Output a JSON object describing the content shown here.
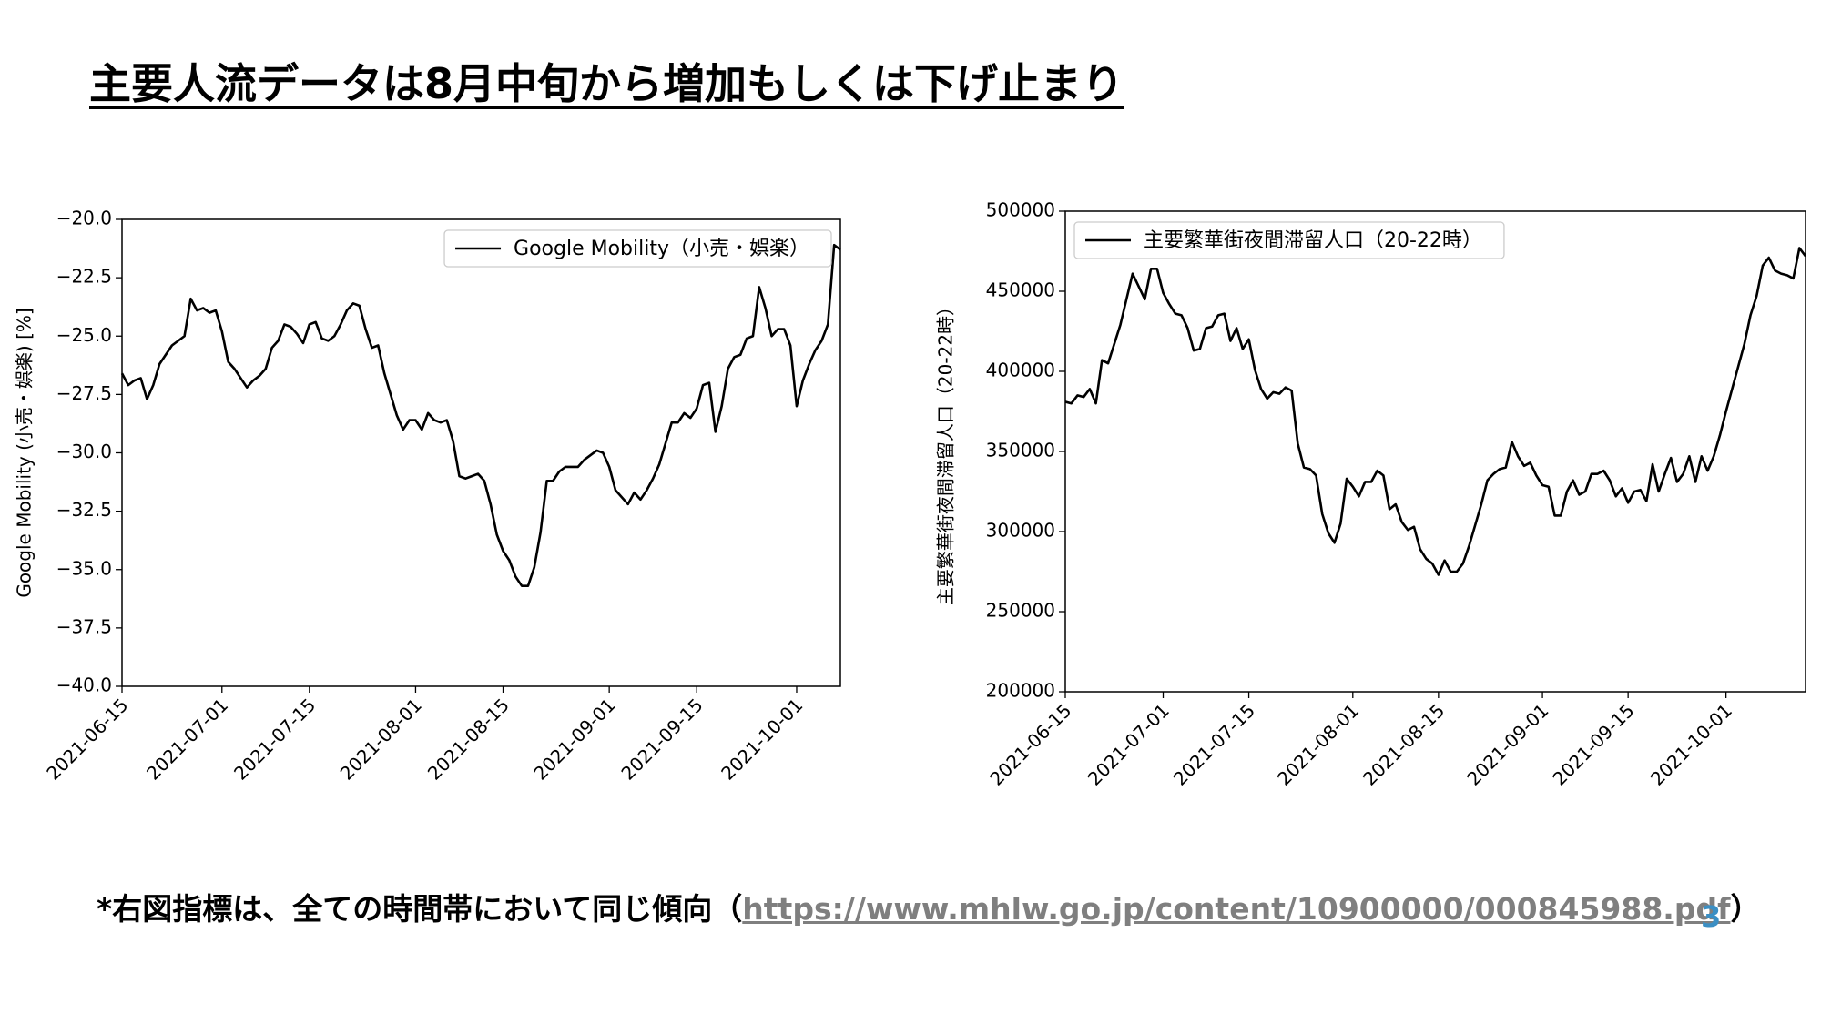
{
  "header": {
    "title": "主要人流データは8月中旬から増加もしくは下げ止まり"
  },
  "footnote": {
    "prefix": "*右図指標は、全ての時間帯において同じ傾向（",
    "link": "https://www.mhlw.go.jp/content/10900000/000845988.pdf",
    "suffix": "）"
  },
  "page_number": "3",
  "chart_data": [
    {
      "type": "line",
      "ylabel": "Google Mobility (小売・娯楽) [%]",
      "legend": "upper right",
      "xlim": [
        "2021-06-15",
        "2021-10-08"
      ],
      "xticks": [
        "2021-06-15",
        "2021-07-01",
        "2021-07-15",
        "2021-08-01",
        "2021-08-15",
        "2021-09-01",
        "2021-09-15",
        "2021-10-01"
      ],
      "ylim": [
        -40,
        -20
      ],
      "yticks": [
        {
          "value": -40,
          "label": "−40.0"
        },
        {
          "value": -37.5,
          "label": "−37.5"
        },
        {
          "value": -35,
          "label": "−35.0"
        },
        {
          "value": -32.5,
          "label": "−32.5"
        },
        {
          "value": -30,
          "label": "−30.0"
        },
        {
          "value": -27.5,
          "label": "−27.5"
        },
        {
          "value": -25,
          "label": "−25.0"
        },
        {
          "value": -22.5,
          "label": "−22.5"
        },
        {
          "value": -20,
          "label": "−20.0"
        }
      ],
      "x": [
        "2021-06-15",
        "2021-06-16",
        "2021-06-17",
        "2021-06-18",
        "2021-06-19",
        "2021-06-20",
        "2021-06-21",
        "2021-06-22",
        "2021-06-23",
        "2021-06-24",
        "2021-06-25",
        "2021-06-26",
        "2021-06-27",
        "2021-06-28",
        "2021-06-29",
        "2021-06-30",
        "2021-07-01",
        "2021-07-02",
        "2021-07-03",
        "2021-07-04",
        "2021-07-05",
        "2021-07-06",
        "2021-07-07",
        "2021-07-08",
        "2021-07-09",
        "2021-07-10",
        "2021-07-11",
        "2021-07-12",
        "2021-07-13",
        "2021-07-14",
        "2021-07-15",
        "2021-07-16",
        "2021-07-17",
        "2021-07-18",
        "2021-07-19",
        "2021-07-20",
        "2021-07-21",
        "2021-07-22",
        "2021-07-23",
        "2021-07-24",
        "2021-07-25",
        "2021-07-26",
        "2021-07-27",
        "2021-07-28",
        "2021-07-29",
        "2021-07-30",
        "2021-07-31",
        "2021-08-01",
        "2021-08-02",
        "2021-08-03",
        "2021-08-04",
        "2021-08-05",
        "2021-08-06",
        "2021-08-07",
        "2021-08-08",
        "2021-08-09",
        "2021-08-10",
        "2021-08-11",
        "2021-08-12",
        "2021-08-13",
        "2021-08-14",
        "2021-08-15",
        "2021-08-16",
        "2021-08-17",
        "2021-08-18",
        "2021-08-19",
        "2021-08-20",
        "2021-08-21",
        "2021-08-22",
        "2021-08-23",
        "2021-08-24",
        "2021-08-25",
        "2021-08-26",
        "2021-08-27",
        "2021-08-28",
        "2021-08-29",
        "2021-08-30",
        "2021-08-31",
        "2021-09-01",
        "2021-09-02",
        "2021-09-03",
        "2021-09-04",
        "2021-09-05",
        "2021-09-06",
        "2021-09-07",
        "2021-09-08",
        "2021-09-09",
        "2021-09-10",
        "2021-09-11",
        "2021-09-12",
        "2021-09-13",
        "2021-09-14",
        "2021-09-15",
        "2021-09-16",
        "2021-09-17",
        "2021-09-18",
        "2021-09-19",
        "2021-09-20",
        "2021-09-21",
        "2021-09-22",
        "2021-09-23",
        "2021-09-24",
        "2021-09-25",
        "2021-09-26",
        "2021-09-27",
        "2021-09-28",
        "2021-09-29",
        "2021-09-30",
        "2021-10-01",
        "2021-10-02",
        "2021-10-03",
        "2021-10-04",
        "2021-10-05",
        "2021-10-06",
        "2021-10-07",
        "2021-10-08"
      ],
      "series": [
        {
          "name": "Google Mobility（小売・娯楽）",
          "color": "#000000",
          "values": [
            -26.6,
            -27.1,
            -26.9,
            -26.8,
            -27.7,
            -27.1,
            -26.2,
            -25.8,
            -25.4,
            -25.2,
            -25.0,
            -23.4,
            -23.9,
            -23.8,
            -24.0,
            -23.9,
            -24.8,
            -26.1,
            -26.4,
            -26.8,
            -27.2,
            -26.9,
            -26.7,
            -26.4,
            -25.5,
            -25.2,
            -24.5,
            -24.6,
            -24.9,
            -25.3,
            -24.5,
            -24.4,
            -25.1,
            -25.2,
            -25.0,
            -24.5,
            -23.9,
            -23.6,
            -23.7,
            -24.7,
            -25.5,
            -25.4,
            -26.6,
            -27.5,
            -28.4,
            -29.0,
            -28.6,
            -28.6,
            -29.0,
            -28.3,
            -28.6,
            -28.7,
            -28.6,
            -29.5,
            -31.0,
            -31.1,
            -31.0,
            -30.9,
            -31.2,
            -32.2,
            -33.5,
            -34.2,
            -34.6,
            -35.3,
            -35.7,
            -35.7,
            -34.9,
            -33.4,
            -31.2,
            -31.2,
            -30.8,
            -30.6,
            -30.6,
            -30.6,
            -30.3,
            -30.1,
            -29.9,
            -30.0,
            -30.6,
            -31.6,
            -31.9,
            -32.2,
            -31.7,
            -32.0,
            -31.6,
            -31.1,
            -30.5,
            -29.6,
            -28.7,
            -28.7,
            -28.3,
            -28.5,
            -28.1,
            -27.1,
            -27.0,
            -29.1,
            -28.0,
            -26.4,
            -25.9,
            -25.8,
            -25.1,
            -25.0,
            -22.9,
            -23.8,
            -25.0,
            -24.7,
            -24.7,
            -25.4,
            -28.0,
            -26.9,
            -26.2,
            -25.6,
            -25.2,
            -24.5,
            -21.1,
            -21.3
          ]
        }
      ]
    },
    {
      "type": "line",
      "ylabel": "主要繁華街夜間滞留人口（20-22時）",
      "legend": "upper left",
      "xlim": [
        "2021-06-15",
        "2021-10-14"
      ],
      "xticks": [
        "2021-06-15",
        "2021-07-01",
        "2021-07-15",
        "2021-08-01",
        "2021-08-15",
        "2021-09-01",
        "2021-09-15",
        "2021-10-01"
      ],
      "ylim": [
        200000,
        500000
      ],
      "yticks": [
        200000,
        250000,
        300000,
        350000,
        400000,
        450000,
        500000
      ],
      "x": [
        "2021-06-15",
        "2021-06-16",
        "2021-06-17",
        "2021-06-18",
        "2021-06-19",
        "2021-06-20",
        "2021-06-21",
        "2021-06-22",
        "2021-06-23",
        "2021-06-24",
        "2021-06-25",
        "2021-06-26",
        "2021-06-27",
        "2021-06-28",
        "2021-06-29",
        "2021-06-30",
        "2021-07-01",
        "2021-07-02",
        "2021-07-03",
        "2021-07-04",
        "2021-07-05",
        "2021-07-06",
        "2021-07-07",
        "2021-07-08",
        "2021-07-09",
        "2021-07-10",
        "2021-07-11",
        "2021-07-12",
        "2021-07-13",
        "2021-07-14",
        "2021-07-15",
        "2021-07-16",
        "2021-07-17",
        "2021-07-18",
        "2021-07-19",
        "2021-07-20",
        "2021-07-21",
        "2021-07-22",
        "2021-07-23",
        "2021-07-24",
        "2021-07-25",
        "2021-07-26",
        "2021-07-27",
        "2021-07-28",
        "2021-07-29",
        "2021-07-30",
        "2021-07-31",
        "2021-08-01",
        "2021-08-02",
        "2021-08-03",
        "2021-08-04",
        "2021-08-05",
        "2021-08-06",
        "2021-08-07",
        "2021-08-08",
        "2021-08-09",
        "2021-08-10",
        "2021-08-11",
        "2021-08-12",
        "2021-08-13",
        "2021-08-14",
        "2021-08-15",
        "2021-08-16",
        "2021-08-17",
        "2021-08-18",
        "2021-08-19",
        "2021-08-20",
        "2021-08-21",
        "2021-08-22",
        "2021-08-23",
        "2021-08-24",
        "2021-08-25",
        "2021-08-26",
        "2021-08-27",
        "2021-08-28",
        "2021-08-29",
        "2021-08-30",
        "2021-08-31",
        "2021-09-01",
        "2021-09-02",
        "2021-09-03",
        "2021-09-04",
        "2021-09-05",
        "2021-09-06",
        "2021-09-07",
        "2021-09-08",
        "2021-09-09",
        "2021-09-10",
        "2021-09-11",
        "2021-09-12",
        "2021-09-13",
        "2021-09-14",
        "2021-09-15",
        "2021-09-16",
        "2021-09-17",
        "2021-09-18",
        "2021-09-19",
        "2021-09-20",
        "2021-09-21",
        "2021-09-22",
        "2021-09-23",
        "2021-09-24",
        "2021-09-25",
        "2021-09-26",
        "2021-09-27",
        "2021-09-28",
        "2021-09-29",
        "2021-09-30",
        "2021-10-01",
        "2021-10-02",
        "2021-10-03",
        "2021-10-04",
        "2021-10-05",
        "2021-10-06",
        "2021-10-07",
        "2021-10-08",
        "2021-10-09",
        "2021-10-10",
        "2021-10-11",
        "2021-10-12",
        "2021-10-13",
        "2021-10-14"
      ],
      "series": [
        {
          "name": "主要繁華街夜間滞留人口（20-22時）",
          "color": "#000000",
          "values": [
            381000,
            380000,
            385000,
            384000,
            389000,
            380000,
            407000,
            405000,
            417000,
            429000,
            445000,
            461000,
            453000,
            445000,
            464000,
            464000,
            449000,
            442000,
            436000,
            435000,
            427000,
            413000,
            414000,
            427000,
            428000,
            435000,
            436000,
            419000,
            427000,
            414000,
            420000,
            401000,
            389000,
            383000,
            387000,
            386000,
            390000,
            388000,
            355000,
            340000,
            339000,
            335000,
            311000,
            299000,
            293000,
            305000,
            333000,
            328000,
            322000,
            331000,
            331000,
            338000,
            335000,
            314000,
            317000,
            306000,
            301000,
            303000,
            289000,
            283000,
            280000,
            273000,
            282000,
            275000,
            275000,
            280000,
            291000,
            304000,
            317000,
            332000,
            336000,
            339000,
            340000,
            356000,
            347000,
            341000,
            343000,
            335000,
            329000,
            328000,
            310000,
            310000,
            325000,
            332000,
            323000,
            325000,
            336000,
            336000,
            338000,
            332000,
            322000,
            327000,
            318000,
            325000,
            326000,
            319000,
            342000,
            325000,
            336000,
            346000,
            331000,
            336000,
            347000,
            331000,
            347000,
            338000,
            347000,
            360000,
            375000,
            389000,
            403000,
            417000,
            435000,
            447000,
            466000,
            471000,
            463000,
            461000,
            460000,
            458000,
            477000,
            472000
          ]
        }
      ]
    }
  ]
}
